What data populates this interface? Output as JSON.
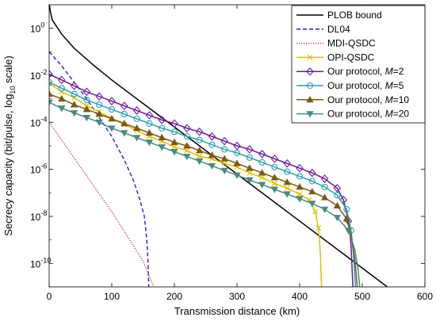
{
  "chart_data": {
    "type": "line",
    "title": "",
    "xlabel": "Transmission distance (km)",
    "ylabel": {
      "prefix": "Secrecy capacity (bit/pulse, log",
      "sub": "10",
      "suffix": " scale)"
    },
    "xlim": [
      0,
      600
    ],
    "ylim_log10": [
      -11,
      1
    ],
    "y_scale": "log",
    "x_ticks": [
      "0",
      "100",
      "200",
      "300",
      "400",
      "500",
      "600"
    ],
    "y_ticks": [
      {
        "base": "10",
        "exp": "0",
        "log10": 0
      },
      {
        "base": "10",
        "exp": "-2",
        "log10": -2
      },
      {
        "base": "10",
        "exp": "-4",
        "log10": -4
      },
      {
        "base": "10",
        "exp": "-6",
        "log10": -6
      },
      {
        "base": "10",
        "exp": "-8",
        "log10": -8
      },
      {
        "base": "10",
        "exp": "-10",
        "log10": -10
      }
    ],
    "grid": false,
    "legend_position": "top-right",
    "series": [
      {
        "name": "PLOB bound",
        "color": "#000000",
        "dash": "solid",
        "marker": "none",
        "points": [
          [
            0.3,
            1.0
          ],
          [
            2,
            0.7
          ],
          [
            5,
            0.35
          ],
          [
            10,
            0.15
          ],
          [
            20,
            -0.25
          ],
          [
            40,
            -0.85
          ],
          [
            70,
            -1.55
          ],
          [
            100,
            -2.2
          ],
          [
            150,
            -3.2
          ],
          [
            200,
            -4.2
          ],
          [
            300,
            -6.2
          ],
          [
            400,
            -8.2
          ],
          [
            500,
            -10.2
          ],
          [
            540,
            -11.0
          ]
        ]
      },
      {
        "name": "DL04",
        "color": "#1f1fd6",
        "dash": "dashed",
        "marker": "none",
        "points": [
          [
            0,
            -1.0
          ],
          [
            20,
            -1.6
          ],
          [
            40,
            -2.3
          ],
          [
            60,
            -3.0
          ],
          [
            80,
            -3.8
          ],
          [
            100,
            -4.6
          ],
          [
            120,
            -5.6
          ],
          [
            135,
            -6.5
          ],
          [
            145,
            -7.3
          ],
          [
            152,
            -8.0
          ],
          [
            156,
            -9.0
          ],
          [
            158,
            -10.0
          ],
          [
            159,
            -11.0
          ]
        ]
      },
      {
        "name": "MDI-QSDC",
        "color": "#c0392b",
        "dash": "dotted",
        "marker": "none",
        "points": [
          [
            0,
            -4.0
          ],
          [
            50,
            -5.9
          ],
          [
            100,
            -7.8
          ],
          [
            150,
            -9.9
          ],
          [
            167,
            -11.0
          ]
        ]
      },
      {
        "name": "OPI-QSDC",
        "color": "#e0c000",
        "dash": "solid",
        "marker": "x",
        "points": [
          [
            0,
            -2.35
          ],
          [
            20,
            -2.7
          ],
          [
            40,
            -2.95
          ],
          [
            60,
            -3.3
          ],
          [
            80,
            -3.55
          ],
          [
            100,
            -3.85
          ],
          [
            120,
            -4.1
          ],
          [
            140,
            -4.35
          ],
          [
            160,
            -4.6
          ],
          [
            180,
            -4.8
          ],
          [
            200,
            -5.05
          ],
          [
            220,
            -5.2
          ],
          [
            240,
            -5.45
          ],
          [
            260,
            -5.55
          ],
          [
            280,
            -5.75
          ],
          [
            300,
            -5.9
          ],
          [
            320,
            -6.15
          ],
          [
            340,
            -6.35
          ],
          [
            360,
            -6.6
          ],
          [
            380,
            -6.8
          ],
          [
            400,
            -7.05
          ],
          [
            415,
            -7.3
          ],
          [
            425,
            -7.8
          ],
          [
            430,
            -8.5
          ],
          [
            433,
            -9.5
          ],
          [
            435,
            -11.0
          ]
        ]
      },
      {
        "name": "Our protocol, M=2",
        "color": "#6a1b9a",
        "dash": "solid",
        "marker": "diamond",
        "points": [
          [
            0,
            -1.95
          ],
          [
            20,
            -2.2
          ],
          [
            40,
            -2.45
          ],
          [
            60,
            -2.7
          ],
          [
            80,
            -2.9
          ],
          [
            100,
            -3.1
          ],
          [
            120,
            -3.3
          ],
          [
            140,
            -3.5
          ],
          [
            160,
            -3.7
          ],
          [
            180,
            -3.9
          ],
          [
            200,
            -4.05
          ],
          [
            220,
            -4.25
          ],
          [
            240,
            -4.4
          ],
          [
            260,
            -4.6
          ],
          [
            280,
            -4.8
          ],
          [
            300,
            -5.0
          ],
          [
            320,
            -5.15
          ],
          [
            340,
            -5.35
          ],
          [
            360,
            -5.55
          ],
          [
            380,
            -5.75
          ],
          [
            400,
            -5.95
          ],
          [
            420,
            -6.15
          ],
          [
            440,
            -6.4
          ],
          [
            460,
            -6.8
          ],
          [
            470,
            -7.3
          ],
          [
            478,
            -8.2
          ],
          [
            482,
            -9.2
          ],
          [
            485,
            -11.0
          ]
        ]
      },
      {
        "name": "Our protocol, M=5",
        "color": "#2a9fb5",
        "dash": "solid",
        "marker": "circle",
        "points": [
          [
            0,
            -2.3
          ],
          [
            20,
            -2.55
          ],
          [
            40,
            -2.8
          ],
          [
            60,
            -3.05
          ],
          [
            80,
            -3.25
          ],
          [
            100,
            -3.45
          ],
          [
            120,
            -3.65
          ],
          [
            140,
            -3.85
          ],
          [
            160,
            -4.05
          ],
          [
            180,
            -4.25
          ],
          [
            200,
            -4.4
          ],
          [
            220,
            -4.6
          ],
          [
            240,
            -4.75
          ],
          [
            260,
            -4.95
          ],
          [
            280,
            -5.15
          ],
          [
            300,
            -5.3
          ],
          [
            320,
            -5.5
          ],
          [
            340,
            -5.7
          ],
          [
            360,
            -5.9
          ],
          [
            380,
            -6.1
          ],
          [
            400,
            -6.3
          ],
          [
            420,
            -6.5
          ],
          [
            440,
            -6.75
          ],
          [
            460,
            -7.1
          ],
          [
            475,
            -7.7
          ],
          [
            482,
            -8.6
          ],
          [
            486,
            -9.6
          ],
          [
            489,
            -11.0
          ]
        ]
      },
      {
        "name": "Our protocol, M=10",
        "color": "#7a5a14",
        "dash": "solid",
        "marker": "triangle",
        "points": [
          [
            0,
            -2.8
          ],
          [
            20,
            -3.0
          ],
          [
            40,
            -3.25
          ],
          [
            60,
            -3.45
          ],
          [
            80,
            -3.65
          ],
          [
            100,
            -3.85
          ],
          [
            120,
            -4.05
          ],
          [
            140,
            -4.25
          ],
          [
            160,
            -4.45
          ],
          [
            180,
            -4.65
          ],
          [
            200,
            -4.85
          ],
          [
            220,
            -5.0
          ],
          [
            240,
            -5.2
          ],
          [
            260,
            -5.4
          ],
          [
            280,
            -5.55
          ],
          [
            300,
            -5.75
          ],
          [
            320,
            -5.95
          ],
          [
            340,
            -6.15
          ],
          [
            360,
            -6.35
          ],
          [
            380,
            -6.55
          ],
          [
            400,
            -6.75
          ],
          [
            420,
            -6.95
          ],
          [
            440,
            -7.2
          ],
          [
            460,
            -7.55
          ],
          [
            475,
            -8.1
          ],
          [
            483,
            -8.9
          ],
          [
            488,
            -9.8
          ],
          [
            492,
            -11.0
          ]
        ]
      },
      {
        "name": "Our protocol, M=20",
        "color": "#4a8a80",
        "dash": "solid",
        "marker": "tri-down",
        "points": [
          [
            0,
            -3.15
          ],
          [
            20,
            -3.4
          ],
          [
            40,
            -3.6
          ],
          [
            60,
            -3.8
          ],
          [
            80,
            -4.0
          ],
          [
            100,
            -4.25
          ],
          [
            120,
            -4.45
          ],
          [
            140,
            -4.65
          ],
          [
            160,
            -4.85
          ],
          [
            180,
            -5.05
          ],
          [
            200,
            -5.25
          ],
          [
            220,
            -5.45
          ],
          [
            240,
            -5.65
          ],
          [
            260,
            -5.85
          ],
          [
            280,
            -6.05
          ],
          [
            300,
            -6.25
          ],
          [
            320,
            -6.45
          ],
          [
            340,
            -6.65
          ],
          [
            360,
            -6.85
          ],
          [
            380,
            -7.05
          ],
          [
            400,
            -7.25
          ],
          [
            420,
            -7.45
          ],
          [
            440,
            -7.7
          ],
          [
            460,
            -8.05
          ],
          [
            478,
            -8.6
          ],
          [
            488,
            -9.4
          ],
          [
            493,
            -10.2
          ],
          [
            496,
            -11.0
          ]
        ]
      }
    ]
  }
}
